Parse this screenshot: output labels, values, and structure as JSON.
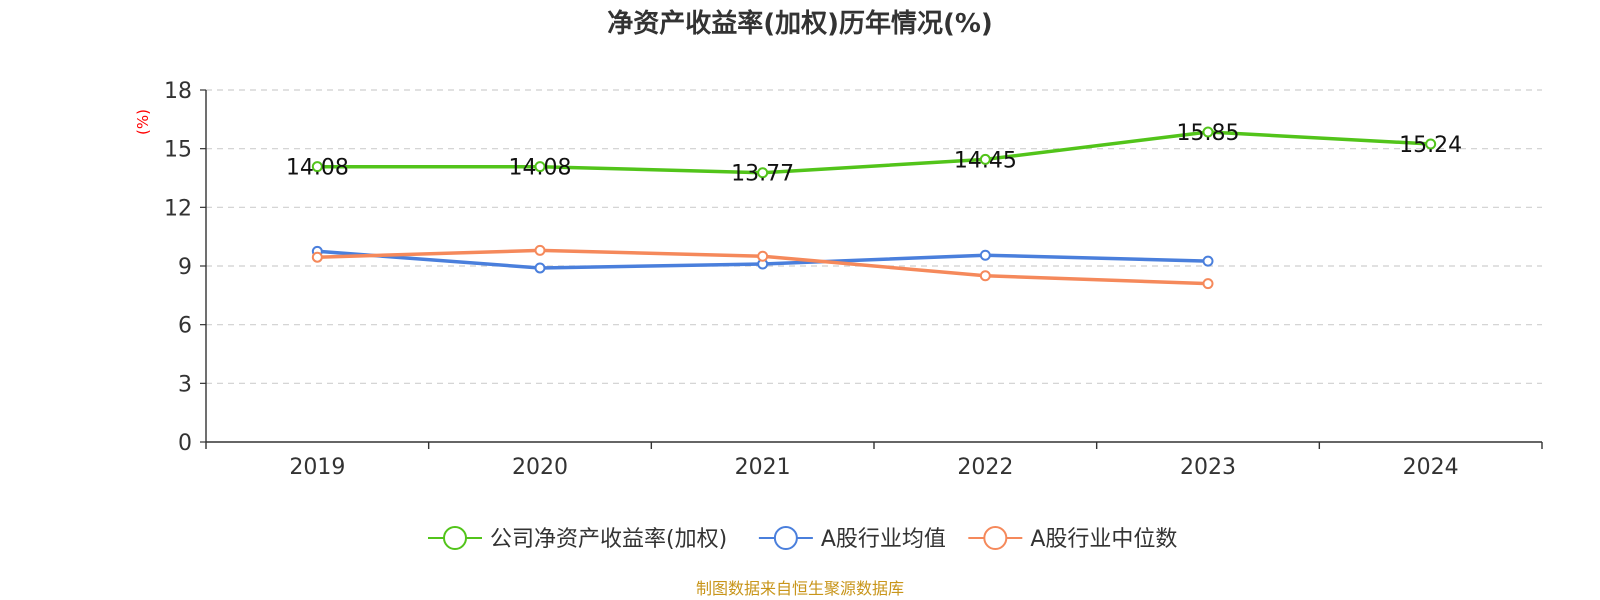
{
  "chart_data": {
    "type": "line",
    "title": "净资产收益率(加权)历年情况(%)",
    "ylabel": "(%)",
    "categories": [
      "2019",
      "2020",
      "2021",
      "2022",
      "2023",
      "2024"
    ],
    "ylim": [
      0,
      18
    ],
    "yticks": [
      0,
      3,
      6,
      9,
      12,
      15,
      18
    ],
    "grid": true,
    "legend_position": "bottom",
    "series": [
      {
        "name": "公司净资产收益率(加权)",
        "color": "#52c41a",
        "values": [
          14.08,
          14.08,
          13.77,
          14.45,
          15.85,
          15.24
        ],
        "labels": [
          "14.08",
          "14.08",
          "13.77",
          "14.45",
          "15.85",
          "15.24"
        ]
      },
      {
        "name": "A股行业均值",
        "color": "#4a7fdc",
        "values": [
          9.75,
          8.9,
          9.1,
          9.55,
          9.25,
          null
        ]
      },
      {
        "name": "A股行业中位数",
        "color": "#f5895b",
        "values": [
          9.45,
          9.8,
          9.5,
          8.5,
          8.1,
          null
        ]
      }
    ],
    "source": "制图数据来自恒生聚源数据库"
  }
}
